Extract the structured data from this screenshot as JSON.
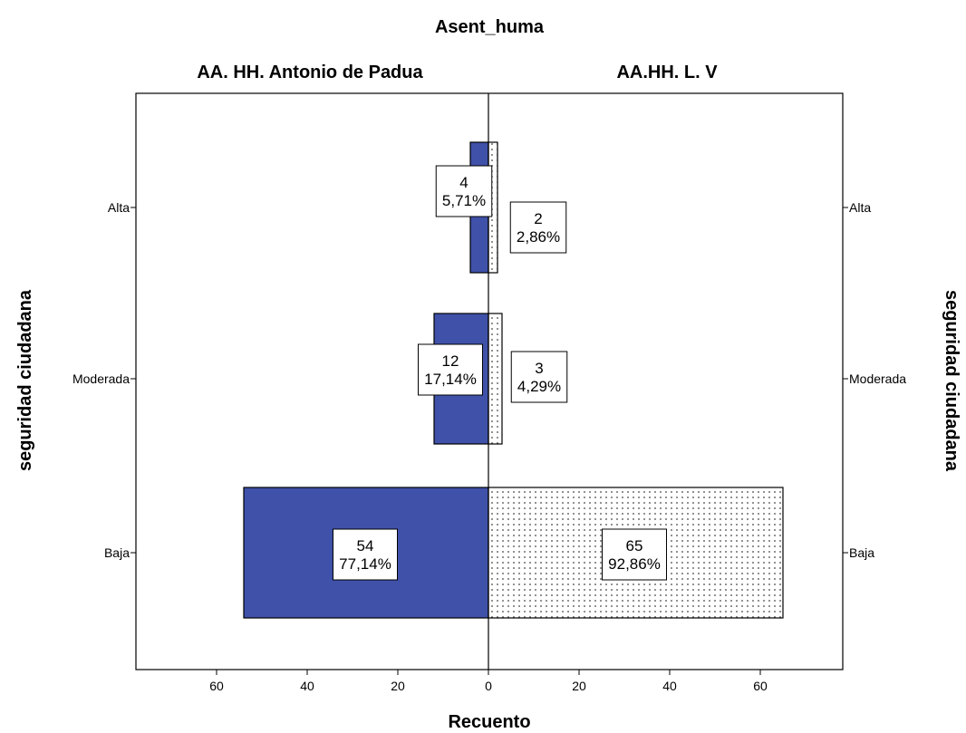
{
  "chart_data": {
    "type": "bar",
    "orientation": "horizontal",
    "layout": "back-to-back population pyramid",
    "title": "Asent_huma",
    "xlabel": "Recuento",
    "ylabel": "seguridad ciudadana",
    "categories": [
      "Alta",
      "Moderada",
      "Baja"
    ],
    "xlim": [
      0,
      75
    ],
    "x_ticks": [
      0,
      20,
      40,
      60
    ],
    "series": [
      {
        "name": "AA. HH. Antonio de Padua",
        "side": "left",
        "color": "#3f51a8",
        "fill_pattern": "solid",
        "values": [
          4,
          12,
          54
        ],
        "labels": [
          "5,71%",
          "17,14%",
          "77,14%"
        ]
      },
      {
        "name": "AA.HH. L. V",
        "side": "right",
        "color": "#ffffff",
        "fill_pattern": "dotted",
        "values": [
          2,
          3,
          65
        ],
        "labels": [
          "2,86%",
          "4,29%",
          "92,86%"
        ]
      }
    ],
    "grid": false,
    "legend": "none"
  }
}
